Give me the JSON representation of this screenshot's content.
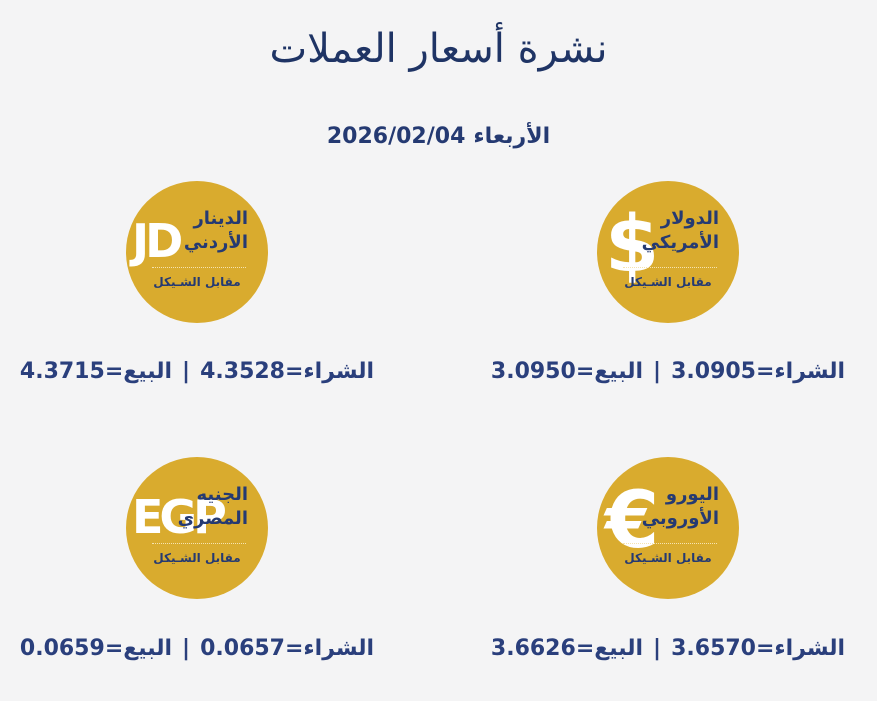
{
  "header": {
    "title": "نشرة أسعار العملات",
    "day": "الأربعاء",
    "date": "2026/02/04"
  },
  "currencies": [
    {
      "name_line1": "الدولار",
      "name_line2": "الأمريكي",
      "symbol": "$",
      "caption": "مقابل الشـيكل",
      "buy_label": "الشراء=",
      "buy": "3.0905",
      "separator": "|",
      "sell_label": "البيع=",
      "sell": "3.0950"
    },
    {
      "name_line1": "الدينار",
      "name_line2": "الأردني",
      "symbol": "JD",
      "caption": "مقابل الشـيكل",
      "buy_label": "الشراء=",
      "buy": "4.3528",
      "separator": "|",
      "sell_label": "البيع=",
      "sell": "4.3715"
    },
    {
      "name_line1": "اليورو",
      "name_line2": "الأوروبي",
      "symbol": "€",
      "caption": "مقابل الشـيكل",
      "buy_label": "الشراء=",
      "buy": "3.6570",
      "separator": "|",
      "sell_label": "البيع=",
      "sell": "3.6626"
    },
    {
      "name_line1": "الجنيه",
      "name_line2": "المصري",
      "symbol": "EGP",
      "caption": "مقابل الشـيكل",
      "buy_label": "الشراء=",
      "buy": "0.0657",
      "separator": "|",
      "sell_label": "البيع=",
      "sell": "0.0659"
    }
  ]
}
